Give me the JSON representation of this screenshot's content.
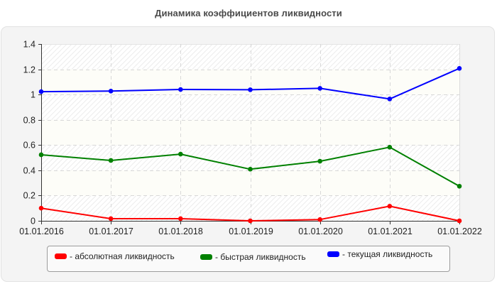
{
  "chart_data": {
    "type": "line",
    "title": "Динамика коэффициентов ликвидности",
    "xlabel": "",
    "ylabel": "",
    "categories": [
      "01.01.2016",
      "01.01.2017",
      "01.01.2018",
      "01.01.2019",
      "01.01.2020",
      "01.01.2021",
      "01.01.2022"
    ],
    "ylim": [
      0,
      1.4
    ],
    "yticks": [
      0,
      0.2,
      0.4,
      0.6,
      0.8,
      1,
      1.2,
      1.4
    ],
    "ytick_labels": [
      "0",
      "0.2",
      "0.4",
      "0.6",
      "0.8",
      "1",
      "1.2",
      "1.4"
    ],
    "grid": true,
    "legend_position": "bottom",
    "series": [
      {
        "name": "абсолютная ликвидность",
        "color": "#ff0000",
        "values": [
          0.1,
          0.017,
          0.017,
          0.0,
          0.01,
          0.116,
          0.0
        ]
      },
      {
        "name": "быстрая ликвидность",
        "color": "#008000",
        "values": [
          0.523,
          0.478,
          0.528,
          0.409,
          0.472,
          0.583,
          0.274
        ]
      },
      {
        "name": "текущая ликвидность",
        "color": "#0000ff",
        "values": [
          1.023,
          1.027,
          1.04,
          1.038,
          1.049,
          0.965,
          1.207
        ]
      }
    ]
  },
  "header": {
    "title": "Динамика коэффициентов ликвидности"
  },
  "legend": {
    "items": [
      {
        "label": "- абсолютная ликвидность",
        "color": "#ff0000"
      },
      {
        "label": "- быстрая ликвидность",
        "color": "#008000"
      },
      {
        "label": "- текущая ликвидность",
        "color": "#0000ff"
      }
    ]
  },
  "colors": {
    "panel_background": "#f4f4f4",
    "band_light": "#fdfdf8",
    "band_hatched": "#ffffff",
    "grid": "#d8d8d8",
    "axis": "#333333"
  }
}
